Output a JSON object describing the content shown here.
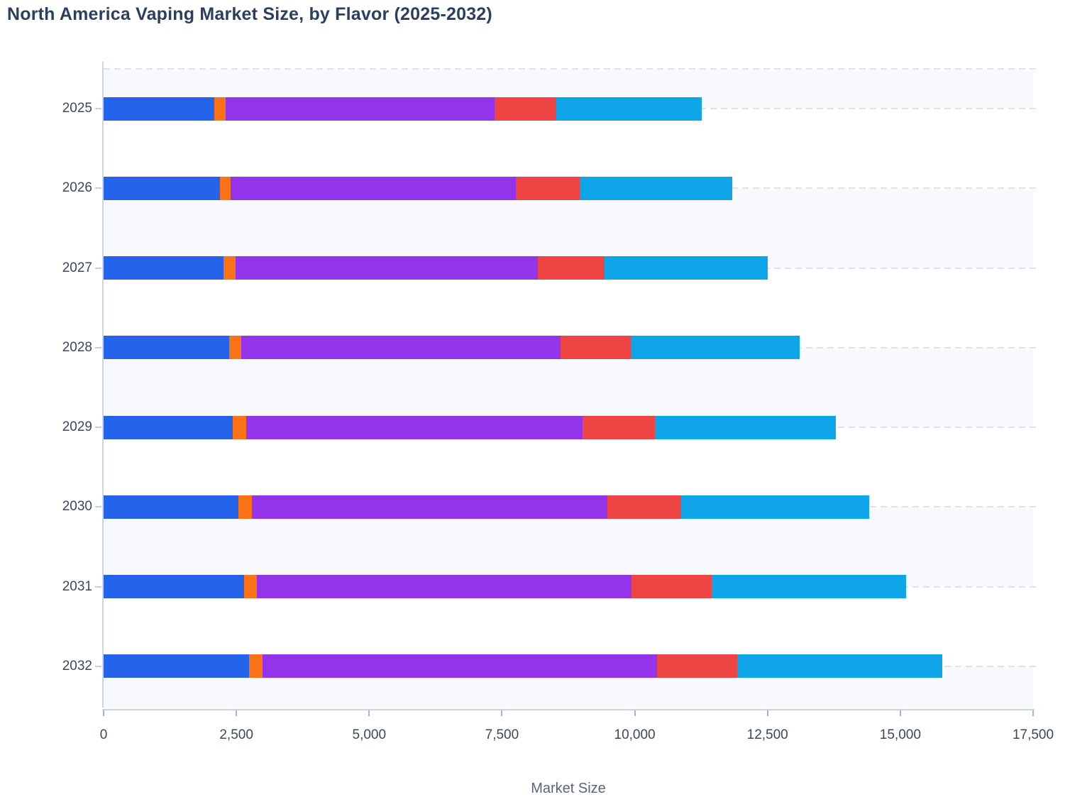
{
  "title": "North America Vaping Market Size, by Flavor (2025-2032)",
  "chart_data": {
    "type": "bar",
    "orientation": "horizontal",
    "stacked": true,
    "title": "North America Vaping Market Size, by Flavor (2025-2032)",
    "xlabel": "Market Size",
    "ylabel": "",
    "xlim": [
      0,
      17500
    ],
    "x_tick_values": [
      0,
      2500,
      5000,
      7500,
      10000,
      12500,
      15000,
      17500
    ],
    "x_tick_labels": [
      "0",
      "2,500",
      "5,000",
      "7,500",
      "10,000",
      "12,500",
      "15,000",
      "17,500"
    ],
    "categories": [
      "2025",
      "2026",
      "2027",
      "2028",
      "2029",
      "2030",
      "2031",
      "2032"
    ],
    "series": [
      {
        "name": "blue",
        "color": "#2563eb",
        "values": [
          2090,
          2190,
          2260,
          2360,
          2430,
          2540,
          2640,
          2740
        ]
      },
      {
        "name": "orange",
        "color": "#f97316",
        "values": [
          210,
          200,
          225,
          230,
          250,
          250,
          245,
          255
        ]
      },
      {
        "name": "purple",
        "color": "#9333ea",
        "values": [
          5060,
          5370,
          5690,
          6010,
          6340,
          6690,
          7050,
          7420
        ]
      },
      {
        "name": "red",
        "color": "#ef4444",
        "values": [
          1165,
          1200,
          1260,
          1320,
          1360,
          1400,
          1510,
          1520
        ]
      },
      {
        "name": "cyan",
        "color": "#0ea5e9",
        "values": [
          2735,
          2880,
          3070,
          3180,
          3405,
          3540,
          3670,
          3860
        ]
      }
    ],
    "totals": [
      11260,
      11840,
      12505,
      13100,
      13785,
      14420,
      15115,
      15795
    ],
    "legend_position": "none",
    "grid": "dashed horizontal category gridlines with alternating light row bands"
  },
  "colors": {
    "background": "#ffffff",
    "band_fill": "#f7f9fc",
    "gridline_dash": "#dfe2ea",
    "axis_line": "#ccd5e4",
    "title_text": "#2b3f5e",
    "tick_text": "#3c4859",
    "axis_title_text": "#5a6477"
  }
}
